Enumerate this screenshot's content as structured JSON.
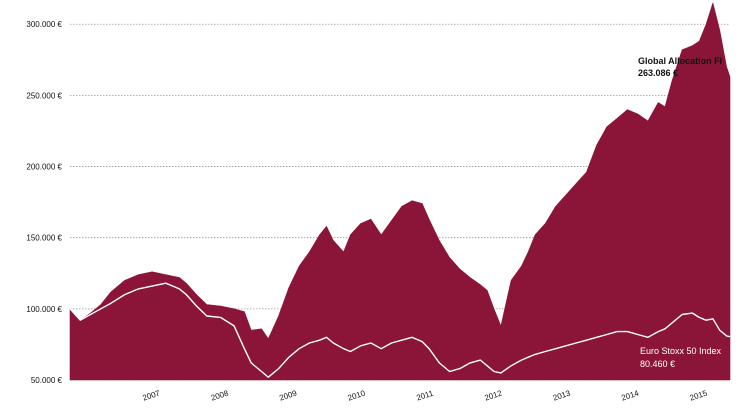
{
  "chart_data": {
    "type": "area",
    "title": "",
    "xlabel": "",
    "ylabel": "",
    "x_range": [
      2006.3,
      2015.95
    ],
    "ylim": [
      50000,
      310000
    ],
    "y_ticks": [
      {
        "value": 50000,
        "label": "50.000 €"
      },
      {
        "value": 100000,
        "label": "100.000 €"
      },
      {
        "value": 150000,
        "label": "150.000 €"
      },
      {
        "value": 200000,
        "label": "200.000 €"
      },
      {
        "value": 250000,
        "label": "250.000 €"
      },
      {
        "value": 300000,
        "label": "300.000 €"
      }
    ],
    "x_ticks": [
      {
        "value": 2007,
        "label": "2007"
      },
      {
        "value": 2008,
        "label": "2008"
      },
      {
        "value": 2009,
        "label": "2009"
      },
      {
        "value": 2010,
        "label": "2010"
      },
      {
        "value": 2011,
        "label": "2011"
      },
      {
        "value": 2012,
        "label": "2012"
      },
      {
        "value": 2013,
        "label": "2013"
      },
      {
        "value": 2014,
        "label": "2014"
      },
      {
        "value": 2015,
        "label": "2015"
      }
    ],
    "grid": true,
    "series": [
      {
        "name": "Global Allocation FI",
        "style": "area",
        "color": "#8b1538",
        "end_label": "Global Allocation FI",
        "end_value_label": "263.086 €",
        "x": [
          2006.3,
          2006.45,
          2006.6,
          2006.75,
          2006.9,
          2007.1,
          2007.3,
          2007.5,
          2007.7,
          2007.9,
          2008.0,
          2008.15,
          2008.3,
          2008.5,
          2008.7,
          2008.85,
          2008.95,
          2009.1,
          2009.2,
          2009.35,
          2009.5,
          2009.65,
          2009.8,
          2009.95,
          2010.05,
          2010.15,
          2010.3,
          2010.4,
          2010.55,
          2010.7,
          2010.85,
          2011.0,
          2011.15,
          2011.3,
          2011.45,
          2011.55,
          2011.7,
          2011.85,
          2012.0,
          2012.15,
          2012.3,
          2012.4,
          2012.5,
          2012.6,
          2012.75,
          2012.9,
          2013.0,
          2013.1,
          2013.25,
          2013.4,
          2013.55,
          2013.7,
          2013.85,
          2014.0,
          2014.15,
          2014.3,
          2014.45,
          2014.6,
          2014.75,
          2014.9,
          2015.0,
          2015.1,
          2015.25,
          2015.4,
          2015.5,
          2015.6,
          2015.7,
          2015.8,
          2015.9,
          2015.95
        ],
        "values": [
          100000,
          92000,
          97000,
          103000,
          112000,
          120000,
          124000,
          126000,
          124000,
          122000,
          118000,
          110000,
          103000,
          102000,
          100000,
          98000,
          85000,
          86000,
          79000,
          95000,
          115000,
          130000,
          140000,
          152000,
          158000,
          148000,
          140000,
          152000,
          160000,
          163000,
          152000,
          162000,
          172000,
          176000,
          174000,
          163000,
          148000,
          136000,
          128000,
          122000,
          117000,
          113000,
          100000,
          88000,
          120000,
          130000,
          140000,
          152000,
          160000,
          172000,
          180000,
          188000,
          196000,
          215000,
          228000,
          234000,
          240000,
          237000,
          232000,
          245000,
          242000,
          260000,
          282000,
          285000,
          288000,
          300000,
          315000,
          296000,
          270000,
          263086
        ]
      },
      {
        "name": "Euro Stoxx 50 Index",
        "style": "line",
        "color": "#ffffff",
        "end_label": "Euro Stoxx 50 Index",
        "end_value_label": "80.460 €",
        "x": [
          2006.3,
          2006.45,
          2006.6,
          2006.75,
          2006.9,
          2007.1,
          2007.3,
          2007.5,
          2007.7,
          2007.9,
          2008.0,
          2008.15,
          2008.3,
          2008.5,
          2008.7,
          2008.85,
          2008.95,
          2009.1,
          2009.2,
          2009.35,
          2009.5,
          2009.65,
          2009.8,
          2009.95,
          2010.05,
          2010.15,
          2010.3,
          2010.4,
          2010.55,
          2010.7,
          2010.85,
          2011.0,
          2011.15,
          2011.3,
          2011.45,
          2011.55,
          2011.7,
          2011.85,
          2012.0,
          2012.15,
          2012.3,
          2012.4,
          2012.5,
          2012.6,
          2012.75,
          2012.9,
          2013.0,
          2013.1,
          2013.25,
          2013.4,
          2013.55,
          2013.7,
          2013.85,
          2014.0,
          2014.15,
          2014.3,
          2014.45,
          2014.6,
          2014.75,
          2014.9,
          2015.0,
          2015.1,
          2015.25,
          2015.4,
          2015.5,
          2015.6,
          2015.7,
          2015.8,
          2015.9,
          2015.95
        ],
        "values": [
          100000,
          92000,
          96000,
          100000,
          104000,
          110000,
          114000,
          116000,
          118000,
          114000,
          110000,
          102000,
          95000,
          94000,
          88000,
          72000,
          62000,
          56000,
          52000,
          58000,
          66000,
          72000,
          76000,
          78000,
          80000,
          76000,
          72000,
          70000,
          74000,
          76000,
          72000,
          76000,
          78000,
          80000,
          77000,
          72000,
          62000,
          56000,
          58000,
          62000,
          64000,
          60000,
          56000,
          55000,
          60000,
          64000,
          66000,
          68000,
          70000,
          72000,
          74000,
          76000,
          78000,
          80000,
          82000,
          84000,
          84000,
          82000,
          80000,
          84000,
          86000,
          90000,
          96000,
          97000,
          94000,
          92000,
          93000,
          85000,
          81000,
          80460
        ]
      }
    ]
  }
}
